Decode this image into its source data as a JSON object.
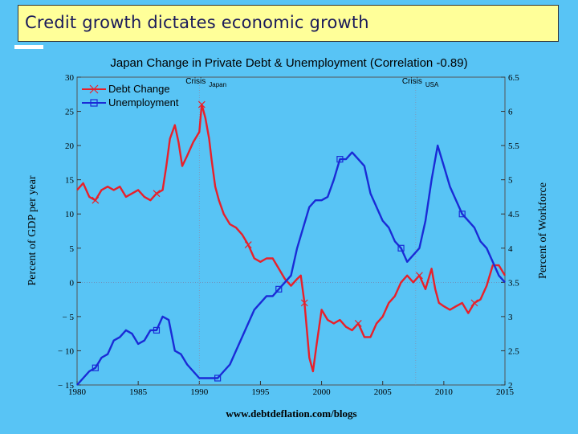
{
  "slide": {
    "title": "Credit growth dictates economic growth"
  },
  "chart_data": {
    "type": "line",
    "title": "Japan Change in Private Debt & Unemployment (Correlation -0.89)",
    "ylabel_left": "Percent of GDP per year",
    "ylabel_right": "Percent of Workforce",
    "source": "www.debtdeflation.com/blogs",
    "x_ticks": [
      "1980",
      "1985",
      "1990",
      "1995",
      "2000",
      "2005",
      "2010",
      "2015"
    ],
    "xlim": [
      1980,
      2015
    ],
    "ylim_left": [
      -15,
      30
    ],
    "ylim_right": [
      2,
      6.5
    ],
    "y_ticks_left": [
      "30",
      "25",
      "20",
      "15",
      "10",
      "5",
      "0",
      "− 5",
      "− 10",
      "− 15"
    ],
    "y_ticks_right": [
      "6.5",
      "6",
      "5.5",
      "5",
      "4.5",
      "4",
      "3.5",
      "3",
      "2.5",
      "2"
    ],
    "annotations": [
      {
        "text": "Crisis",
        "sub": "Japan",
        "x": 1990
      },
      {
        "text": "Crisis",
        "sub": "USA",
        "x": 2007.7
      }
    ],
    "series": [
      {
        "name": "Debt Change",
        "axis": "left",
        "color": "#E8202A",
        "marker": "x",
        "x": [
          1980,
          1980.5,
          1981,
          1981.5,
          1982,
          1982.5,
          1983,
          1983.5,
          1984,
          1984.5,
          1985,
          1985.5,
          1986,
          1986.5,
          1987,
          1987.3,
          1987.6,
          1988,
          1988.3,
          1988.6,
          1989,
          1989.5,
          1990,
          1990.2,
          1990.5,
          1990.8,
          1991,
          1991.3,
          1991.6,
          1992,
          1992.5,
          1993,
          1993.5,
          1994,
          1994.5,
          1995,
          1995.5,
          1996,
          1996.5,
          1997,
          1997.5,
          1998,
          1998.3,
          1998.6,
          1999,
          1999.3,
          1999.6,
          2000,
          2000.5,
          2001,
          2001.5,
          2002,
          2002.5,
          2003,
          2003.5,
          2004,
          2004.5,
          2005,
          2005.5,
          2006,
          2006.5,
          2007,
          2007.5,
          2008,
          2008.5,
          2009,
          2009.3,
          2009.6,
          2010,
          2010.5,
          2011,
          2011.5,
          2012,
          2012.5,
          2013,
          2013.5,
          2014,
          2014.5,
          2015
        ],
        "y": [
          13.5,
          14.5,
          12.5,
          12,
          13.5,
          14,
          13.5,
          14,
          12.5,
          13,
          13.5,
          12.5,
          12,
          13,
          13.5,
          17,
          21,
          23,
          20.5,
          17,
          18.5,
          20.5,
          22,
          26,
          24,
          21,
          18,
          14,
          12,
          10,
          8.5,
          8,
          7,
          5.5,
          3.5,
          3,
          3.5,
          3.5,
          2,
          0.5,
          -0.5,
          0.5,
          1,
          -3,
          -11,
          -13,
          -9,
          -4,
          -5.5,
          -6,
          -5.5,
          -6.5,
          -7,
          -6,
          -8,
          -8,
          -6,
          -5,
          -3,
          -2,
          0,
          1,
          0,
          1,
          -1,
          2,
          -1,
          -3,
          -3.5,
          -4,
          -3.5,
          -3,
          -4.5,
          -3,
          -2.5,
          -0.5,
          2.5,
          2.5,
          1
        ]
      },
      {
        "name": "Unemployment",
        "axis": "right",
        "color": "#1A2BD6",
        "marker": "square",
        "x": [
          1980,
          1980.5,
          1981,
          1981.5,
          1982,
          1982.5,
          1983,
          1983.5,
          1984,
          1984.5,
          1985,
          1985.5,
          1986,
          1986.5,
          1987,
          1987.5,
          1988,
          1988.5,
          1989,
          1989.5,
          1990,
          1990.5,
          1991,
          1991.5,
          1992,
          1992.5,
          1993,
          1993.5,
          1994,
          1994.5,
          1995,
          1995.5,
          1996,
          1996.5,
          1997,
          1997.5,
          1998,
          1998.5,
          1999,
          1999.5,
          2000,
          2000.5,
          2001,
          2001.5,
          2002,
          2002.5,
          2003,
          2003.5,
          2004,
          2004.5,
          2005,
          2005.5,
          2006,
          2006.5,
          2007,
          2007.5,
          2008,
          2008.5,
          2009,
          2009.5,
          2010,
          2010.5,
          2011,
          2011.5,
          2012,
          2012.5,
          2013,
          2013.5,
          2014,
          2014.5,
          2015
        ],
        "y": [
          2.0,
          2.1,
          2.2,
          2.25,
          2.4,
          2.45,
          2.65,
          2.7,
          2.8,
          2.75,
          2.6,
          2.65,
          2.8,
          2.8,
          3.0,
          2.95,
          2.5,
          2.45,
          2.3,
          2.2,
          2.1,
          2.1,
          2.1,
          2.1,
          2.2,
          2.3,
          2.5,
          2.7,
          2.9,
          3.1,
          3.2,
          3.3,
          3.3,
          3.4,
          3.5,
          3.6,
          4.0,
          4.3,
          4.6,
          4.7,
          4.7,
          4.75,
          5.0,
          5.3,
          5.3,
          5.4,
          5.3,
          5.2,
          4.8,
          4.6,
          4.4,
          4.3,
          4.1,
          4.0,
          3.8,
          3.9,
          4.0,
          4.4,
          5.0,
          5.5,
          5.2,
          4.9,
          4.7,
          4.5,
          4.4,
          4.3,
          4.1,
          4.0,
          3.8,
          3.6,
          3.5
        ]
      }
    ]
  }
}
